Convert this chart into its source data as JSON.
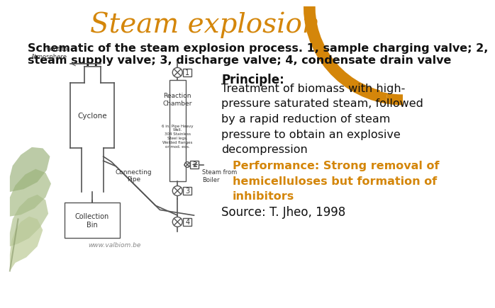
{
  "title": "Steam explosion",
  "title_color": "#D4860A",
  "title_fontsize": 28,
  "subtitle": "Schematic of the steam explosion process. 1, sample charging valve; 2,\nsteam supply valve; 3, discharge valve; 4, condensate drain valve",
  "subtitle_fontsize": 11.5,
  "subtitle_color": "#111111",
  "principle_title": "Principle:",
  "principle_body": "Treatment of biomass with high-\npressure saturated steam, followed\nby a rapid reduction of steam\npressure to obtain an explosive\ndecompression",
  "principle_fontsize": 11.5,
  "principle_color": "#111111",
  "performance_text": "Performance: Strong removal of\nhemicelluloses but formation of\ninhibitors",
  "performance_color": "#D4860A",
  "performance_fontsize": 11.5,
  "source_text": "Source: T. Jheo, 1998",
  "source_fontsize": 12,
  "source_color": "#111111",
  "bg_color": "#FFFFFF",
  "border_color_top": "#D4860A",
  "border_color_bottom": "#C8D8B0"
}
